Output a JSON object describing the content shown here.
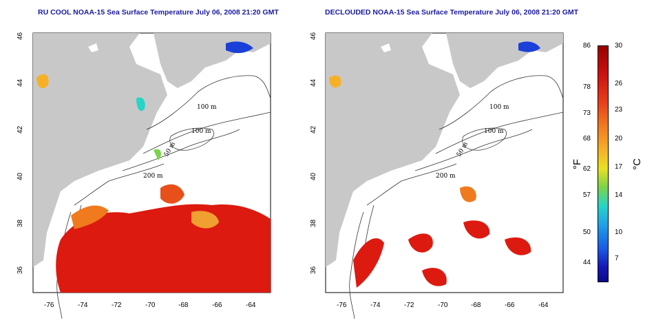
{
  "titles": {
    "left": "RU COOL NOAA-15 Sea Surface Temperature July 06, 2008 21:20 GMT",
    "right": "DECLOUDED NOAA-15 Sea Surface Temperature July 06, 2008 21:20 GMT"
  },
  "map": {
    "lat_ticks": [
      "36",
      "38",
      "40",
      "42",
      "44",
      "46"
    ],
    "lon_ticks": [
      "-76",
      "-74",
      "-72",
      "-70",
      "-68",
      "-66",
      "-64"
    ],
    "contours": [
      "100 m",
      "100 m",
      "50 m",
      "200 m",
      "50 m",
      "200 m"
    ]
  },
  "colorbar": {
    "f_ticks": [
      "86",
      "78",
      "73",
      "68",
      "62",
      "57",
      "50",
      "44"
    ],
    "c_ticks": [
      "30",
      "26",
      "23",
      "20",
      "17",
      "14",
      "10",
      "7"
    ],
    "f_unit": "°F",
    "c_unit": "°C"
  },
  "colors": {
    "land": "#c8c8c8",
    "title": "#1a1aa0",
    "warm": "#dd1a10",
    "orange": "#f07a1e",
    "cold": "#1a40d8"
  }
}
